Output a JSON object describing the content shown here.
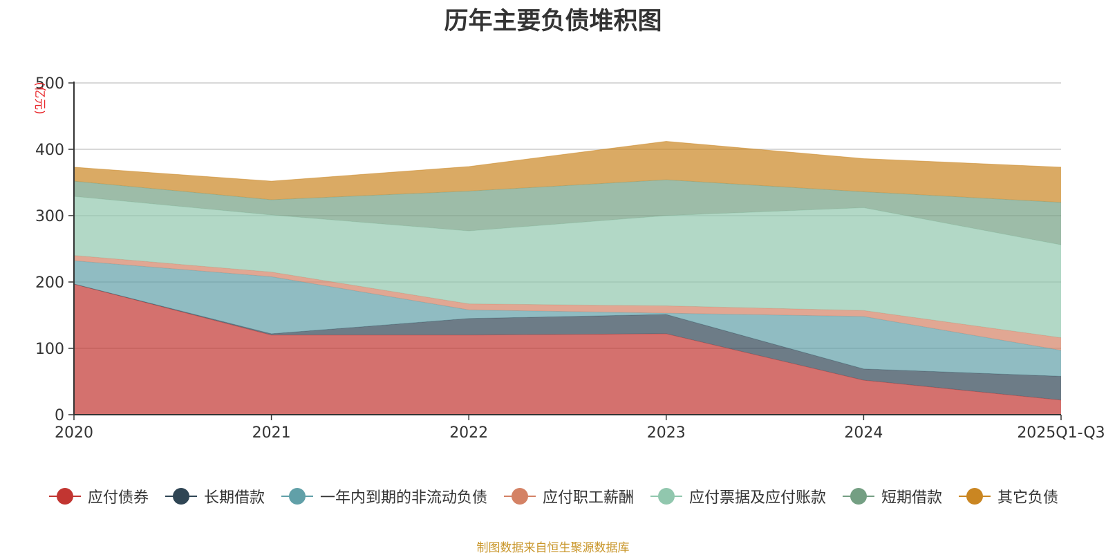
{
  "chart_data": {
    "type": "area",
    "stacked": true,
    "title": "历年主要负债堆积图",
    "unit_label": "(亿元)",
    "categories": [
      "2020",
      "2021",
      "2022",
      "2023",
      "2024",
      "2025Q1-Q3"
    ],
    "ylim": [
      0,
      500
    ],
    "yticks": [
      0,
      100,
      200,
      300,
      400,
      500
    ],
    "grid": true,
    "legend_position": "bottom",
    "series": [
      {
        "name": "应付债券",
        "color": "#c23531",
        "values": [
          197,
          120,
          120,
          122,
          52,
          22
        ]
      },
      {
        "name": "长期借款",
        "color": "#2f4554",
        "values": [
          0,
          2,
          25,
          29,
          17,
          36
        ]
      },
      {
        "name": "一年内到期的非流动负债",
        "color": "#61a0a8",
        "values": [
          35,
          86,
          13,
          2,
          79,
          39
        ]
      },
      {
        "name": "应付职工薪酬",
        "color": "#d48265",
        "values": [
          8,
          7,
          9,
          11,
          9,
          19
        ]
      },
      {
        "name": "应付票据及应付账款",
        "color": "#91c7ae",
        "values": [
          89,
          86,
          110,
          136,
          155,
          140
        ]
      },
      {
        "name": "短期借款",
        "color": "#749f83",
        "values": [
          23,
          23,
          60,
          54,
          24,
          64
        ]
      },
      {
        "name": "其它负债",
        "color": "#ca8622",
        "values": [
          21,
          28,
          37,
          58,
          50,
          53
        ]
      }
    ]
  },
  "footer": {
    "source": "制图数据来自恒生聚源数据库"
  }
}
